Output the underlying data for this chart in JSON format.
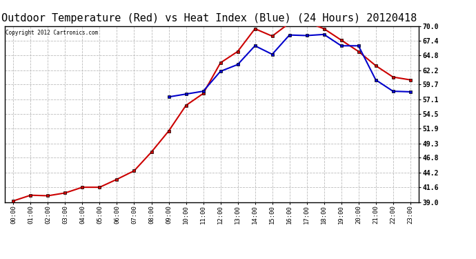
{
  "title": "Outdoor Temperature (Red) vs Heat Index (Blue) (24 Hours) 20120418",
  "copyright_text": "Copyright 2012 Cartronics.com",
  "x_labels": [
    "00:00",
    "01:00",
    "02:00",
    "03:00",
    "04:00",
    "05:00",
    "06:00",
    "07:00",
    "08:00",
    "09:00",
    "10:00",
    "11:00",
    "12:00",
    "13:00",
    "14:00",
    "15:00",
    "16:00",
    "17:00",
    "18:00",
    "19:00",
    "20:00",
    "21:00",
    "22:00",
    "23:00"
  ],
  "temp_red": [
    39.2,
    40.2,
    40.1,
    40.6,
    41.6,
    41.6,
    43.0,
    44.5,
    47.8,
    51.5,
    56.0,
    58.1,
    63.5,
    65.5,
    69.5,
    68.2,
    70.5,
    70.7,
    69.5,
    67.5,
    65.5,
    63.0,
    61.0,
    60.5
  ],
  "heat_blue": [
    null,
    null,
    null,
    null,
    null,
    null,
    null,
    null,
    null,
    57.5,
    58.0,
    58.5,
    62.0,
    63.2,
    66.5,
    65.0,
    68.4,
    68.3,
    68.5,
    66.5,
    66.5,
    60.5,
    58.5,
    58.4
  ],
  "ylim_min": 39.0,
  "ylim_max": 70.0,
  "yticks": [
    39.0,
    41.6,
    44.2,
    46.8,
    49.3,
    51.9,
    54.5,
    57.1,
    59.7,
    62.2,
    64.8,
    67.4,
    70.0
  ],
  "red_color": "#cc0000",
  "blue_color": "#0000cc",
  "background_color": "#ffffff",
  "plot_bg_color": "#ffffff",
  "grid_color": "#bbbbbb",
  "title_fontsize": 11,
  "marker": "s",
  "marker_size": 3,
  "line_width": 1.5
}
